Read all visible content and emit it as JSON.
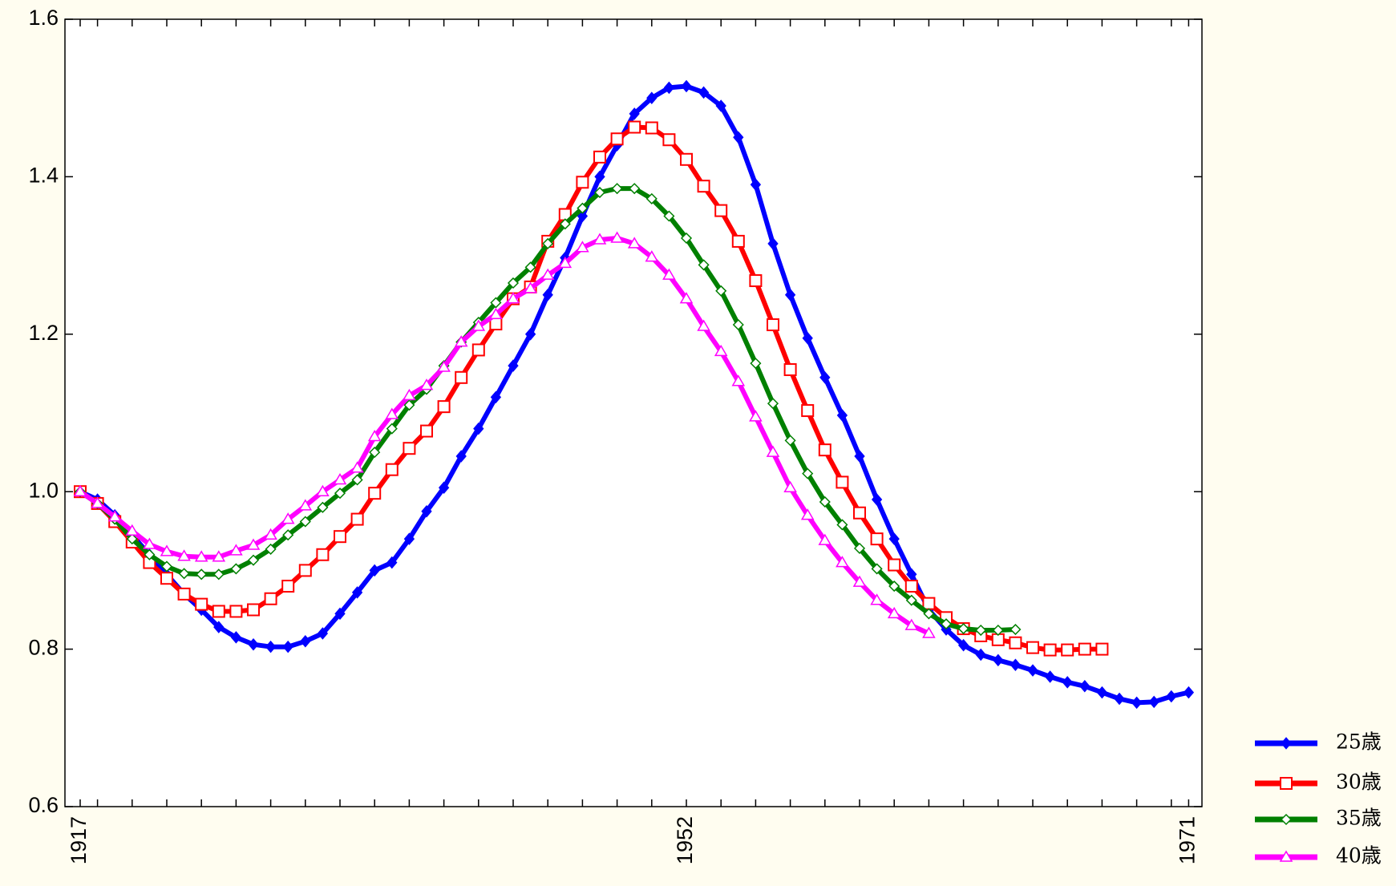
{
  "chart_data": {
    "type": "line",
    "categories": [
      "1917",
      null,
      null,
      null,
      null,
      null,
      null,
      null,
      null,
      null,
      null,
      null,
      null,
      null,
      null,
      null,
      null,
      null,
      null,
      null,
      null,
      null,
      null,
      null,
      null,
      null,
      null,
      null,
      null,
      null,
      null,
      null,
      null,
      null,
      null,
      "1952",
      null,
      null,
      null,
      null,
      null,
      null,
      null,
      null,
      null,
      null,
      null,
      null,
      null,
      null,
      null,
      null,
      null,
      null,
      null,
      null,
      null,
      null,
      null,
      null,
      null,
      null,
      null,
      null,
      "1971"
    ],
    "ylim": [
      0.6,
      1.6
    ],
    "yticks": [
      0.6,
      0.8,
      {
        "value": 1,
        "label": "1.0"
      },
      1.2,
      1.4,
      1.6
    ],
    "legend": "lower right",
    "series": [
      {
        "name": "25歳",
        "color": "#0000ff",
        "values": [
          1.0,
          0.99,
          0.97,
          0.945,
          0.92,
          0.895,
          0.87,
          0.85,
          0.828,
          0.815,
          0.806,
          0.803,
          0.803,
          0.81,
          0.82,
          0.845,
          0.872,
          0.9,
          0.91,
          0.94,
          0.975,
          1.005,
          1.045,
          1.08,
          1.12,
          1.16,
          1.2,
          1.25,
          1.297,
          1.35,
          1.4,
          1.44,
          1.48,
          1.5,
          1.513,
          1.515,
          1.507,
          1.49,
          1.45,
          1.39,
          1.315,
          1.25,
          1.195,
          1.145,
          1.097,
          1.045,
          0.99,
          0.94,
          0.895,
          0.85,
          0.825,
          0.805,
          0.793,
          0.786,
          0.78,
          0.773,
          0.765,
          0.758,
          0.753,
          0.745,
          0.737,
          0.732,
          0.733,
          0.74,
          0.745
        ]
      },
      {
        "name": "30歳",
        "color": "#ff0000",
        "values": [
          1.0,
          0.985,
          0.962,
          0.936,
          0.91,
          0.89,
          0.87,
          0.857,
          0.848,
          0.848,
          0.85,
          0.864,
          0.88,
          0.9,
          0.92,
          0.943,
          0.965,
          0.998,
          1.028,
          1.055,
          1.077,
          1.108,
          1.145,
          1.18,
          1.213,
          1.245,
          1.26,
          1.318,
          1.352,
          1.393,
          1.425,
          1.448,
          1.463,
          1.462,
          1.447,
          1.422,
          1.388,
          1.357,
          1.318,
          1.268,
          1.212,
          1.155,
          1.103,
          1.053,
          1.012,
          0.973,
          0.94,
          0.907,
          0.88,
          0.858,
          0.84,
          0.826,
          0.817,
          0.812,
          0.808,
          0.802,
          0.799,
          0.799,
          0.8,
          0.8,
          null,
          null,
          null,
          null,
          null
        ]
      },
      {
        "name": "35歳",
        "color": "#008000",
        "values": [
          1.0,
          0.985,
          0.965,
          0.94,
          0.92,
          0.905,
          0.896,
          0.895,
          0.895,
          0.902,
          0.913,
          0.927,
          0.945,
          0.962,
          0.98,
          0.998,
          1.015,
          1.05,
          1.08,
          1.11,
          1.13,
          1.16,
          1.19,
          1.215,
          1.24,
          1.265,
          1.285,
          1.315,
          1.34,
          1.36,
          1.38,
          1.385,
          1.385,
          1.372,
          1.35,
          1.322,
          1.288,
          1.255,
          1.212,
          1.163,
          1.112,
          1.065,
          1.023,
          0.987,
          0.958,
          0.928,
          0.902,
          0.88,
          0.862,
          0.845,
          0.832,
          0.826,
          0.824,
          0.824,
          0.825,
          null,
          null,
          null,
          null,
          null,
          null,
          null,
          null,
          null,
          null
        ]
      },
      {
        "name": "40歳",
        "color": "#ff00ff",
        "values": [
          1.0,
          0.985,
          0.968,
          0.95,
          0.933,
          0.924,
          0.918,
          0.917,
          0.917,
          0.925,
          0.932,
          0.945,
          0.965,
          0.982,
          1.0,
          1.015,
          1.03,
          1.07,
          1.098,
          1.122,
          1.135,
          1.158,
          1.19,
          1.21,
          1.225,
          1.245,
          1.258,
          1.275,
          1.29,
          1.31,
          1.32,
          1.322,
          1.315,
          1.298,
          1.275,
          1.245,
          1.21,
          1.178,
          1.14,
          1.095,
          1.05,
          1.005,
          0.97,
          0.938,
          0.91,
          0.885,
          0.862,
          0.845,
          0.83,
          0.82,
          null,
          null,
          null,
          null,
          null,
          null,
          null,
          null,
          null,
          null,
          null,
          null,
          null,
          null,
          null
        ]
      }
    ]
  }
}
